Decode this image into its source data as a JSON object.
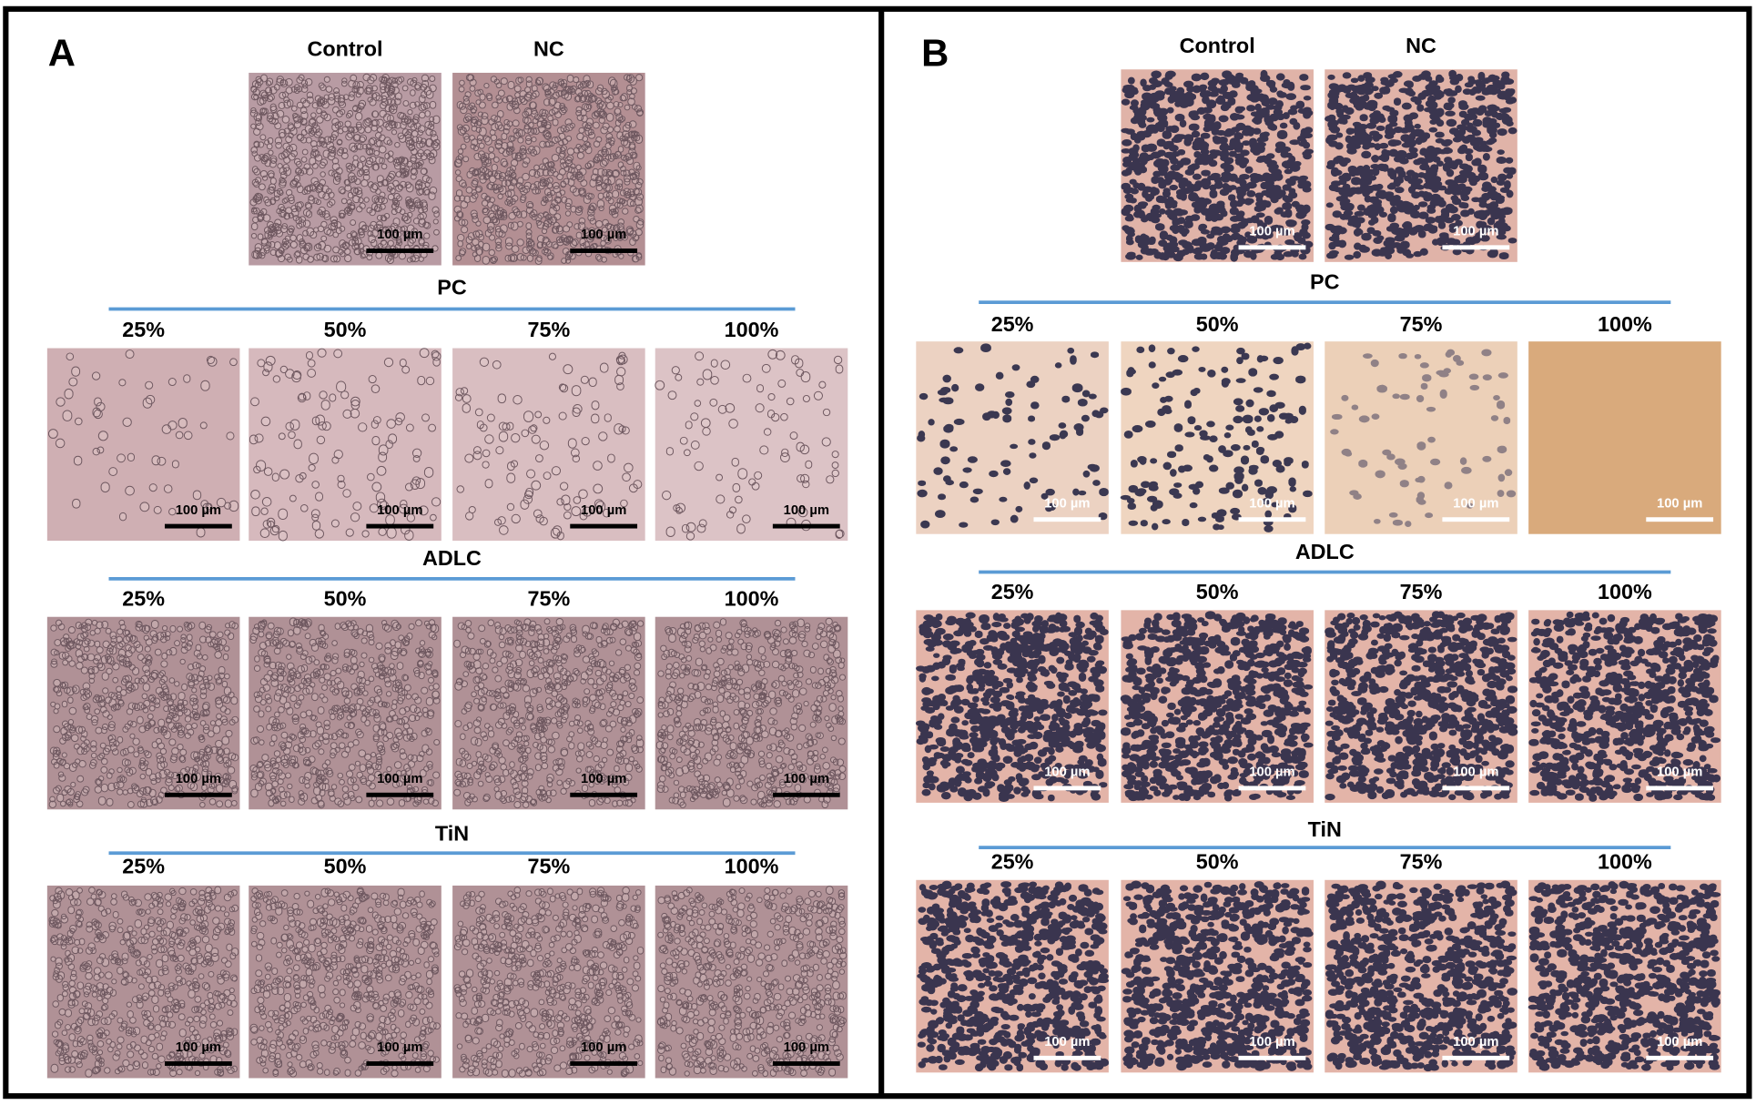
{
  "panels": [
    {
      "letter": "A",
      "top": [
        {
          "label": "Control",
          "scale": "100 µm"
        },
        {
          "label": "NC",
          "scale": "100 µm"
        }
      ],
      "groups": [
        {
          "title": "PC",
          "images": [
            {
              "label": "25%",
              "scale": "100 µm"
            },
            {
              "label": "50%",
              "scale": "100 µm"
            },
            {
              "label": "75%",
              "scale": "100 µm"
            },
            {
              "label": "100%",
              "scale": "100 µm"
            }
          ]
        },
        {
          "title": "ADLC",
          "images": [
            {
              "label": "25%",
              "scale": "100 µm"
            },
            {
              "label": "50%",
              "scale": "100 µm"
            },
            {
              "label": "75%",
              "scale": "100 µm"
            },
            {
              "label": "100%",
              "scale": "100 µm"
            }
          ]
        },
        {
          "title": "TiN",
          "images": [
            {
              "label": "25%",
              "scale": "100 µm"
            },
            {
              "label": "50%",
              "scale": "100 µm"
            },
            {
              "label": "75%",
              "scale": "100 µm"
            },
            {
              "label": "100%",
              "scale": "100 µm"
            }
          ]
        }
      ]
    },
    {
      "letter": "B",
      "top": [
        {
          "label": "Control",
          "scale": "100 µm"
        },
        {
          "label": "NC",
          "scale": "100 µm"
        }
      ],
      "groups": [
        {
          "title": "PC",
          "images": [
            {
              "label": "25%",
              "scale": "100 µm"
            },
            {
              "label": "50%",
              "scale": "100 µm"
            },
            {
              "label": "75%",
              "scale": "100 µm"
            },
            {
              "label": "100%",
              "scale": "100 µm"
            }
          ]
        },
        {
          "title": "ADLC",
          "images": [
            {
              "label": "25%",
              "scale": "100 µm"
            },
            {
              "label": "50%",
              "scale": "100 µm"
            },
            {
              "label": "75%",
              "scale": "100 µm"
            },
            {
              "label": "100%",
              "scale": "100 µm"
            }
          ]
        },
        {
          "title": "TiN",
          "images": [
            {
              "label": "25%",
              "scale": "100 µm"
            },
            {
              "label": "50%",
              "scale": "100 µm"
            },
            {
              "label": "75%",
              "scale": "100 µm"
            },
            {
              "label": "100%",
              "scale": "100 µm"
            }
          ]
        }
      ]
    }
  ]
}
